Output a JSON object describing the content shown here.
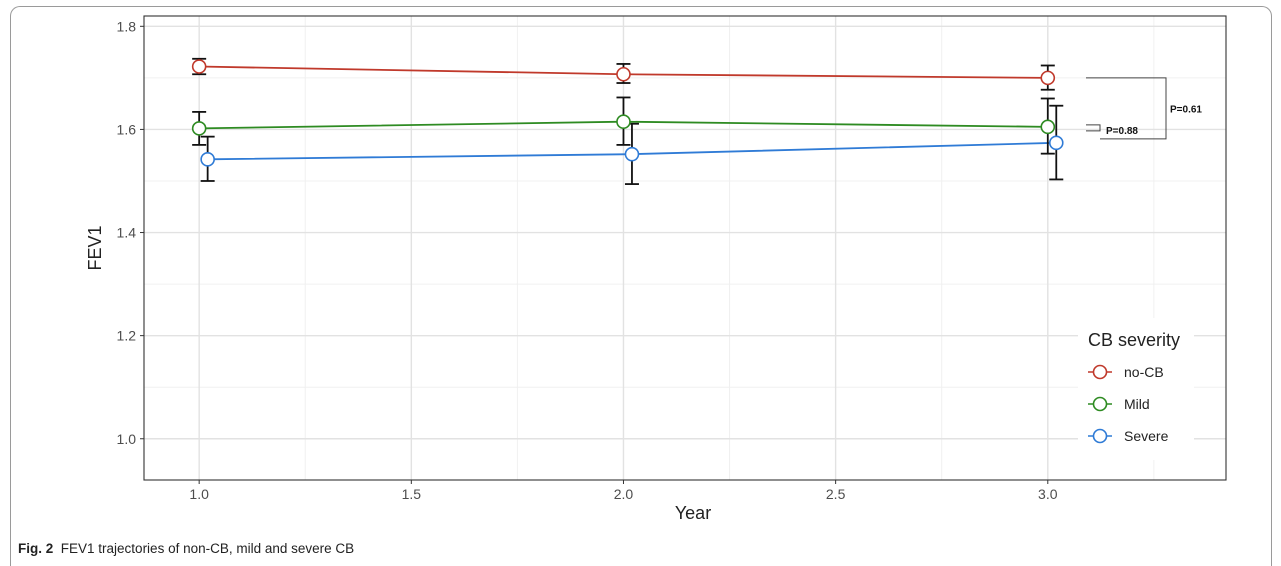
{
  "caption": {
    "label": "Fig. 2",
    "text": "FEV1 trajectories of non-CB, mild and severe CB"
  },
  "chart_data": {
    "type": "line",
    "title": "",
    "xlabel": "Year",
    "ylabel": "FEV1",
    "xlim": [
      0.87,
      3.42
    ],
    "ylim": [
      0.92,
      1.82
    ],
    "x_ticks": [
      1.0,
      1.5,
      2.0,
      2.5,
      3.0
    ],
    "x_tick_labels": [
      "1.0",
      "1.5",
      "2.0",
      "2.5",
      "3.0"
    ],
    "y_ticks": [
      1.0,
      1.2,
      1.4,
      1.6,
      1.8
    ],
    "y_tick_labels": [
      "1.0",
      "1.2",
      "1.4",
      "1.6",
      "1.8"
    ],
    "grid": true,
    "legend": {
      "title": "CB severity",
      "position": "right"
    },
    "series": [
      {
        "name": "no-CB",
        "color": "#c0392b",
        "x": [
          1.0,
          2.0,
          3.0
        ],
        "y": [
          1.722,
          1.707,
          1.7
        ],
        "err_low": [
          1.707,
          1.69,
          1.677
        ],
        "err_high": [
          1.737,
          1.727,
          1.724
        ]
      },
      {
        "name": "Mild",
        "color": "#2e8b22",
        "x": [
          1.0,
          2.0,
          3.0
        ],
        "y": [
          1.602,
          1.615,
          1.605
        ],
        "err_low": [
          1.57,
          1.57,
          1.553
        ],
        "err_high": [
          1.634,
          1.662,
          1.66
        ]
      },
      {
        "name": "Severe",
        "color": "#2f7bd6",
        "x": [
          1.02,
          2.02,
          3.02
        ],
        "y": [
          1.542,
          1.552,
          1.574
        ],
        "err_low": [
          1.5,
          1.494,
          1.503
        ],
        "err_high": [
          1.586,
          1.611,
          1.646
        ]
      }
    ],
    "annotations": [
      {
        "text": "P=0.61",
        "from_series": "no-CB",
        "to_series": "Mild"
      },
      {
        "text": "P=0.88",
        "from_series": "Mild",
        "to_series": "Severe"
      }
    ]
  }
}
